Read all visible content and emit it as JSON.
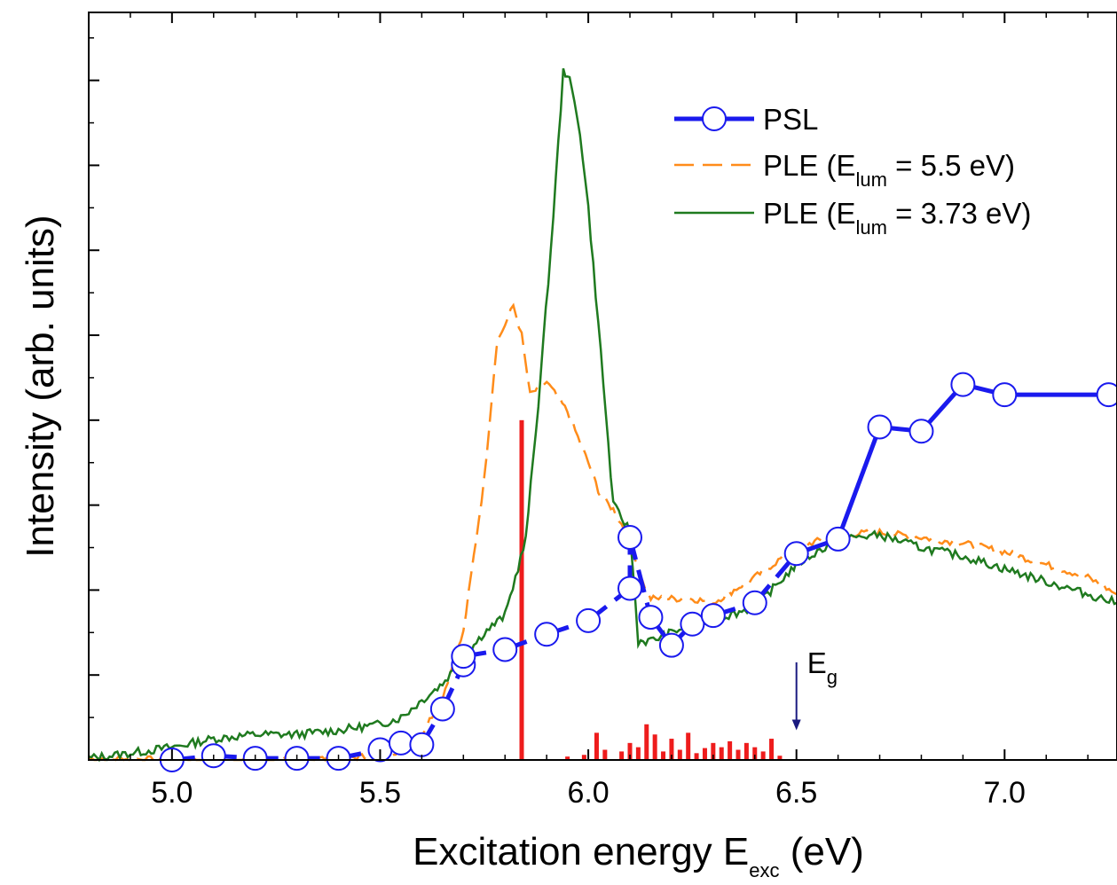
{
  "chart_data": {
    "type": "line",
    "xlabel": {
      "main": "Excitation energy E",
      "sub": "exc",
      "unit": " (eV)"
    },
    "ylabel": "Intensity (arb. units)",
    "xlim": [
      4.8,
      7.27
    ],
    "ylim": [
      0,
      8.8
    ],
    "x_ticks": [
      5.0,
      5.5,
      6.0,
      6.5,
      7.0
    ],
    "x_tick_labels": [
      "5.0",
      "5.5",
      "6.0",
      "6.5",
      "7.0"
    ],
    "y_ticks": [
      1,
      2,
      3,
      4,
      5,
      6,
      7,
      8
    ],
    "y_tick_labels_shown": false,
    "grid": false,
    "legend_position": "top-right",
    "colors": {
      "psl": "#1a1aee",
      "ple55": "#ff8c1a",
      "ple373": "#1f7a1f",
      "bars": "#ee1c1c",
      "eg": "#1a1a80"
    },
    "legend": [
      {
        "label": "PSL",
        "pre": "PSL",
        "sub": "",
        "post": ""
      },
      {
        "label": "PLE (Elum = 5.5 eV)",
        "pre": "PLE (E",
        "sub": "lum",
        "post": " = 5.5 eV)"
      },
      {
        "label": "PLE (Elum = 3.73 eV)",
        "pre": "PLE (E",
        "sub": "lum",
        "post": " = 3.73 eV)"
      }
    ],
    "series": [
      {
        "name": "PSL",
        "style": "dashed-circles",
        "x": [
          5.0,
          5.1,
          5.2,
          5.3,
          5.4,
          5.5,
          5.55,
          5.6,
          5.65,
          5.7,
          5.7,
          5.8,
          5.9,
          6.0,
          6.1,
          6.1,
          6.15,
          6.2,
          6.25,
          6.3,
          6.4,
          6.5,
          6.6,
          6.7,
          6.8,
          6.9,
          7.0,
          7.25
        ],
        "y": [
          0.0,
          0.05,
          0.02,
          0.02,
          0.02,
          0.12,
          0.2,
          0.18,
          0.6,
          1.12,
          1.22,
          1.3,
          1.48,
          1.64,
          2.02,
          2.62,
          1.68,
          1.35,
          1.6,
          1.7,
          1.85,
          2.43,
          2.6,
          3.92,
          3.87,
          4.42,
          4.3,
          4.3
        ],
        "dashed_until_x": 6.5
      },
      {
        "name": "PLE (Elum = 5.5 eV)",
        "style": "dashed",
        "x": [
          4.8,
          5.0,
          5.2,
          5.4,
          5.5,
          5.55,
          5.6,
          5.65,
          5.7,
          5.75,
          5.78,
          5.82,
          5.84,
          5.86,
          5.9,
          5.95,
          6.0,
          6.03,
          6.06,
          6.1,
          6.13,
          6.15,
          6.2,
          6.25,
          6.3,
          6.4,
          6.5,
          6.6,
          6.7,
          6.8,
          6.9,
          7.0,
          7.1,
          7.2,
          7.27
        ],
        "y": [
          0.02,
          0.0,
          0.0,
          0.02,
          0.05,
          0.12,
          0.3,
          0.75,
          1.5,
          3.3,
          4.9,
          5.35,
          5.0,
          4.3,
          4.45,
          4.1,
          3.5,
          3.1,
          2.95,
          2.6,
          2.1,
          1.9,
          1.9,
          1.9,
          1.85,
          2.15,
          2.5,
          2.65,
          2.68,
          2.62,
          2.55,
          2.45,
          2.3,
          2.15,
          1.95
        ]
      },
      {
        "name": "PLE (Elum = 3.73 eV)",
        "style": "solid",
        "x": [
          4.8,
          4.9,
          5.0,
          5.1,
          5.2,
          5.3,
          5.4,
          5.5,
          5.55,
          5.6,
          5.65,
          5.7,
          5.75,
          5.8,
          5.85,
          5.88,
          5.91,
          5.94,
          5.95,
          5.96,
          5.98,
          6.0,
          6.03,
          6.06,
          6.1,
          6.12,
          6.15,
          6.2,
          6.25,
          6.3,
          6.4,
          6.5,
          6.6,
          6.7,
          6.8,
          6.9,
          7.0,
          7.1,
          7.2,
          7.27
        ],
        "y": [
          0.02,
          0.08,
          0.15,
          0.25,
          0.3,
          0.3,
          0.35,
          0.42,
          0.5,
          0.7,
          0.9,
          1.2,
          1.5,
          1.7,
          2.6,
          4.2,
          6.0,
          8.1,
          8.08,
          7.9,
          7.4,
          6.5,
          4.8,
          3.0,
          2.7,
          1.4,
          1.4,
          1.5,
          1.6,
          1.65,
          1.8,
          2.3,
          2.6,
          2.65,
          2.5,
          2.4,
          2.25,
          2.1,
          1.95,
          1.85
        ]
      }
    ],
    "bars": {
      "name": "transitions",
      "x": [
        5.84,
        5.95,
        5.99,
        6.02,
        6.04,
        6.08,
        6.1,
        6.12,
        6.14,
        6.16,
        6.18,
        6.2,
        6.22,
        6.24,
        6.26,
        6.28,
        6.3,
        6.32,
        6.34,
        6.36,
        6.38,
        6.4,
        6.42,
        6.44,
        6.46
      ],
      "y": [
        4.0,
        0.04,
        0.06,
        0.32,
        0.12,
        0.1,
        0.2,
        0.15,
        0.42,
        0.3,
        0.1,
        0.25,
        0.12,
        0.32,
        0.08,
        0.14,
        0.2,
        0.15,
        0.22,
        0.12,
        0.2,
        0.15,
        0.1,
        0.25,
        0.05
      ]
    },
    "annotation": {
      "label_main": "E",
      "label_sub": "g",
      "x": 6.5,
      "arrow_from_y": 1.15,
      "arrow_to_y": 0.35
    }
  }
}
